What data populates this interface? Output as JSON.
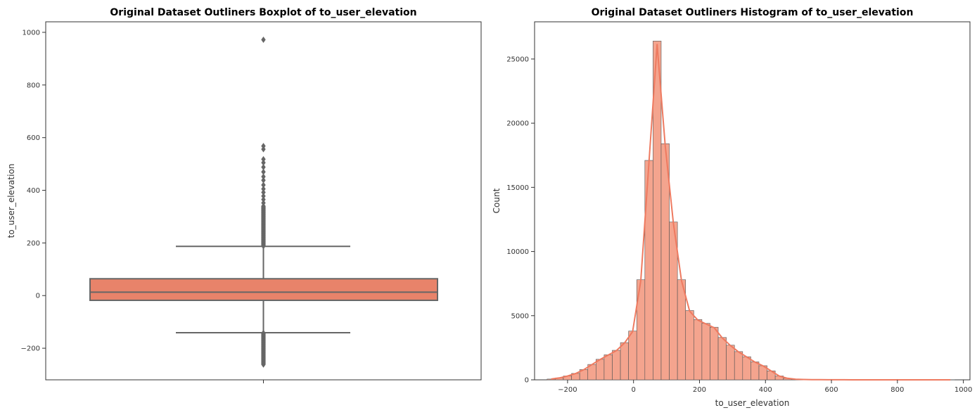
{
  "chart_data": [
    {
      "type": "boxplot",
      "title": "Original Dataset Outliners Boxplot of to_user_elevation",
      "ylabel": "to_user_elevation",
      "xlabel": "",
      "ylim": [
        -320,
        1040
      ],
      "yticks": [
        -200,
        0,
        200,
        400,
        600,
        800,
        1000
      ],
      "box": {
        "q1": -18,
        "median": 13,
        "q3": 64,
        "whisker_low": -141,
        "whisker_high": 187
      },
      "outliers": {
        "low_min": -262,
        "low_max": -142,
        "high_min": 188,
        "high_max": 340,
        "high_extra": [
          352,
          365,
          378,
          392,
          405,
          420,
          438,
          452,
          470,
          488,
          505,
          518,
          556,
          568,
          972
        ]
      },
      "colors": {
        "box": "#E8836A",
        "lines": "#666666"
      },
      "grid": false
    },
    {
      "type": "histogram",
      "title": "Original Dataset Outliners Histogram of to_user_elevation",
      "xlabel": "to_user_elevation",
      "ylabel": "Count",
      "xlim": [
        -300,
        1020
      ],
      "ylim": [
        0,
        27900
      ],
      "xticks": [
        -200,
        0,
        200,
        400,
        600,
        800,
        1000
      ],
      "yticks": [
        0,
        5000,
        10000,
        15000,
        20000,
        25000
      ],
      "bin_start": -262,
      "bin_width": 24.7,
      "counts": [
        60,
        150,
        300,
        500,
        800,
        1200,
        1600,
        1950,
        2300,
        2900,
        3800,
        7800,
        17100,
        26400,
        18400,
        12300,
        7800,
        5400,
        4700,
        4400,
        4100,
        3300,
        2700,
        2200,
        1800,
        1400,
        1100,
        700,
        300,
        120,
        50,
        25,
        15,
        10,
        6,
        4,
        3,
        2,
        2,
        2,
        1,
        1,
        1,
        1,
        1,
        1,
        1,
        1,
        1,
        1
      ],
      "colors": {
        "bar": "#F4A48E",
        "edge": "#555555",
        "kde": "#EE7A60"
      },
      "kde": true,
      "grid": false
    }
  ]
}
